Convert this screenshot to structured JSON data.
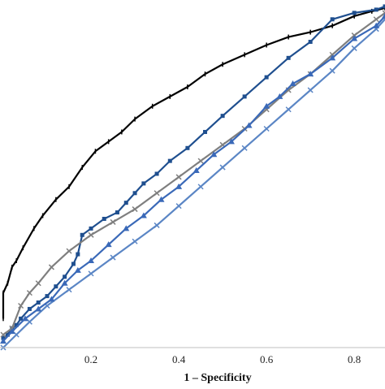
{
  "chart_data": {
    "type": "line",
    "xlabel": "1 – Specificity",
    "ylabel": "",
    "xlim": [
      0,
      0.87
    ],
    "ylim": [
      0,
      1.08
    ],
    "x_ticks": [
      {
        "value": 0.2,
        "label": "0.2"
      },
      {
        "value": 0.4,
        "label": "0.4"
      },
      {
        "value": 0.6,
        "label": "0.6"
      },
      {
        "value": 0.8,
        "label": "0.8"
      }
    ],
    "grid": false,
    "legend": "none",
    "series": [
      {
        "color": "#000000",
        "marker": "dash",
        "width": 2.2,
        "points": [
          [
            0,
            0.09
          ],
          [
            0.0,
            0.17
          ],
          [
            0.01,
            0.2
          ],
          [
            0.02,
            0.25
          ],
          [
            0.03,
            0.27
          ],
          [
            0.045,
            0.31
          ],
          [
            0.07,
            0.37
          ],
          [
            0.09,
            0.41
          ],
          [
            0.12,
            0.46
          ],
          [
            0.15,
            0.5
          ],
          [
            0.18,
            0.56
          ],
          [
            0.21,
            0.61
          ],
          [
            0.24,
            0.64
          ],
          [
            0.27,
            0.67
          ],
          [
            0.3,
            0.71
          ],
          [
            0.34,
            0.75
          ],
          [
            0.38,
            0.78
          ],
          [
            0.42,
            0.81
          ],
          [
            0.46,
            0.85
          ],
          [
            0.5,
            0.88
          ],
          [
            0.55,
            0.91
          ],
          [
            0.6,
            0.94
          ],
          [
            0.65,
            0.965
          ],
          [
            0.7,
            0.98
          ],
          [
            0.75,
            1.0
          ],
          [
            0.8,
            1.03
          ],
          [
            0.84,
            1.045
          ],
          [
            0.87,
            1.055
          ]
        ]
      },
      {
        "color": "#1f4f8f",
        "marker": "square",
        "width": 2.2,
        "points": [
          [
            0,
            0.03
          ],
          [
            0.01,
            0.04
          ],
          [
            0.02,
            0.06
          ],
          [
            0.03,
            0.07
          ],
          [
            0.04,
            0.09
          ],
          [
            0.06,
            0.12
          ],
          [
            0.08,
            0.14
          ],
          [
            0.1,
            0.16
          ],
          [
            0.12,
            0.19
          ],
          [
            0.14,
            0.22
          ],
          [
            0.16,
            0.26
          ],
          [
            0.17,
            0.29
          ],
          [
            0.18,
            0.35
          ],
          [
            0.2,
            0.37
          ],
          [
            0.23,
            0.4
          ],
          [
            0.26,
            0.42
          ],
          [
            0.28,
            0.45
          ],
          [
            0.3,
            0.48
          ],
          [
            0.32,
            0.51
          ],
          [
            0.35,
            0.54
          ],
          [
            0.38,
            0.58
          ],
          [
            0.42,
            0.62
          ],
          [
            0.46,
            0.67
          ],
          [
            0.5,
            0.72
          ],
          [
            0.55,
            0.78
          ],
          [
            0.6,
            0.84
          ],
          [
            0.65,
            0.9
          ],
          [
            0.7,
            0.95
          ],
          [
            0.75,
            1.02
          ],
          [
            0.8,
            1.04
          ],
          [
            0.85,
            1.05
          ],
          [
            0.87,
            1.06
          ]
        ]
      },
      {
        "color": "#7f7f7f",
        "marker": "x",
        "width": 2.2,
        "points": [
          [
            0,
            0.04
          ],
          [
            0.02,
            0.06
          ],
          [
            0.04,
            0.13
          ],
          [
            0.06,
            0.17
          ],
          [
            0.08,
            0.2
          ],
          [
            0.11,
            0.25
          ],
          [
            0.15,
            0.3
          ],
          [
            0.2,
            0.35
          ],
          [
            0.25,
            0.39
          ],
          [
            0.3,
            0.43
          ],
          [
            0.35,
            0.48
          ],
          [
            0.4,
            0.53
          ],
          [
            0.45,
            0.58
          ],
          [
            0.5,
            0.63
          ],
          [
            0.55,
            0.68
          ],
          [
            0.6,
            0.74
          ],
          [
            0.65,
            0.8
          ],
          [
            0.7,
            0.85
          ],
          [
            0.75,
            0.91
          ],
          [
            0.8,
            0.97
          ],
          [
            0.85,
            1.02
          ],
          [
            0.87,
            1.04
          ]
        ]
      },
      {
        "color": "#5b86c5",
        "marker": "x",
        "width": 2.2,
        "points": [
          [
            0,
            0.0
          ],
          [
            0.03,
            0.04
          ],
          [
            0.06,
            0.08
          ],
          [
            0.1,
            0.13
          ],
          [
            0.15,
            0.18
          ],
          [
            0.2,
            0.23
          ],
          [
            0.25,
            0.28
          ],
          [
            0.3,
            0.33
          ],
          [
            0.35,
            0.38
          ],
          [
            0.4,
            0.44
          ],
          [
            0.45,
            0.5
          ],
          [
            0.5,
            0.56
          ],
          [
            0.55,
            0.62
          ],
          [
            0.6,
            0.68
          ],
          [
            0.65,
            0.74
          ],
          [
            0.7,
            0.8
          ],
          [
            0.75,
            0.86
          ],
          [
            0.8,
            0.93
          ],
          [
            0.85,
            0.99
          ],
          [
            0.87,
            1.02
          ]
        ]
      },
      {
        "color": "#3a69b8",
        "marker": "triangle",
        "width": 2.2,
        "points": [
          [
            0,
            0.02
          ],
          [
            0.02,
            0.05
          ],
          [
            0.05,
            0.09
          ],
          [
            0.08,
            0.12
          ],
          [
            0.11,
            0.15
          ],
          [
            0.14,
            0.2
          ],
          [
            0.17,
            0.24
          ],
          [
            0.2,
            0.27
          ],
          [
            0.24,
            0.32
          ],
          [
            0.28,
            0.37
          ],
          [
            0.32,
            0.41
          ],
          [
            0.36,
            0.46
          ],
          [
            0.4,
            0.5
          ],
          [
            0.44,
            0.55
          ],
          [
            0.48,
            0.6
          ],
          [
            0.52,
            0.64
          ],
          [
            0.56,
            0.69
          ],
          [
            0.6,
            0.75
          ],
          [
            0.63,
            0.78
          ],
          [
            0.66,
            0.82
          ],
          [
            0.7,
            0.85
          ],
          [
            0.75,
            0.9
          ],
          [
            0.8,
            0.96
          ],
          [
            0.85,
            1.0
          ],
          [
            0.87,
            1.03
          ]
        ]
      }
    ]
  }
}
